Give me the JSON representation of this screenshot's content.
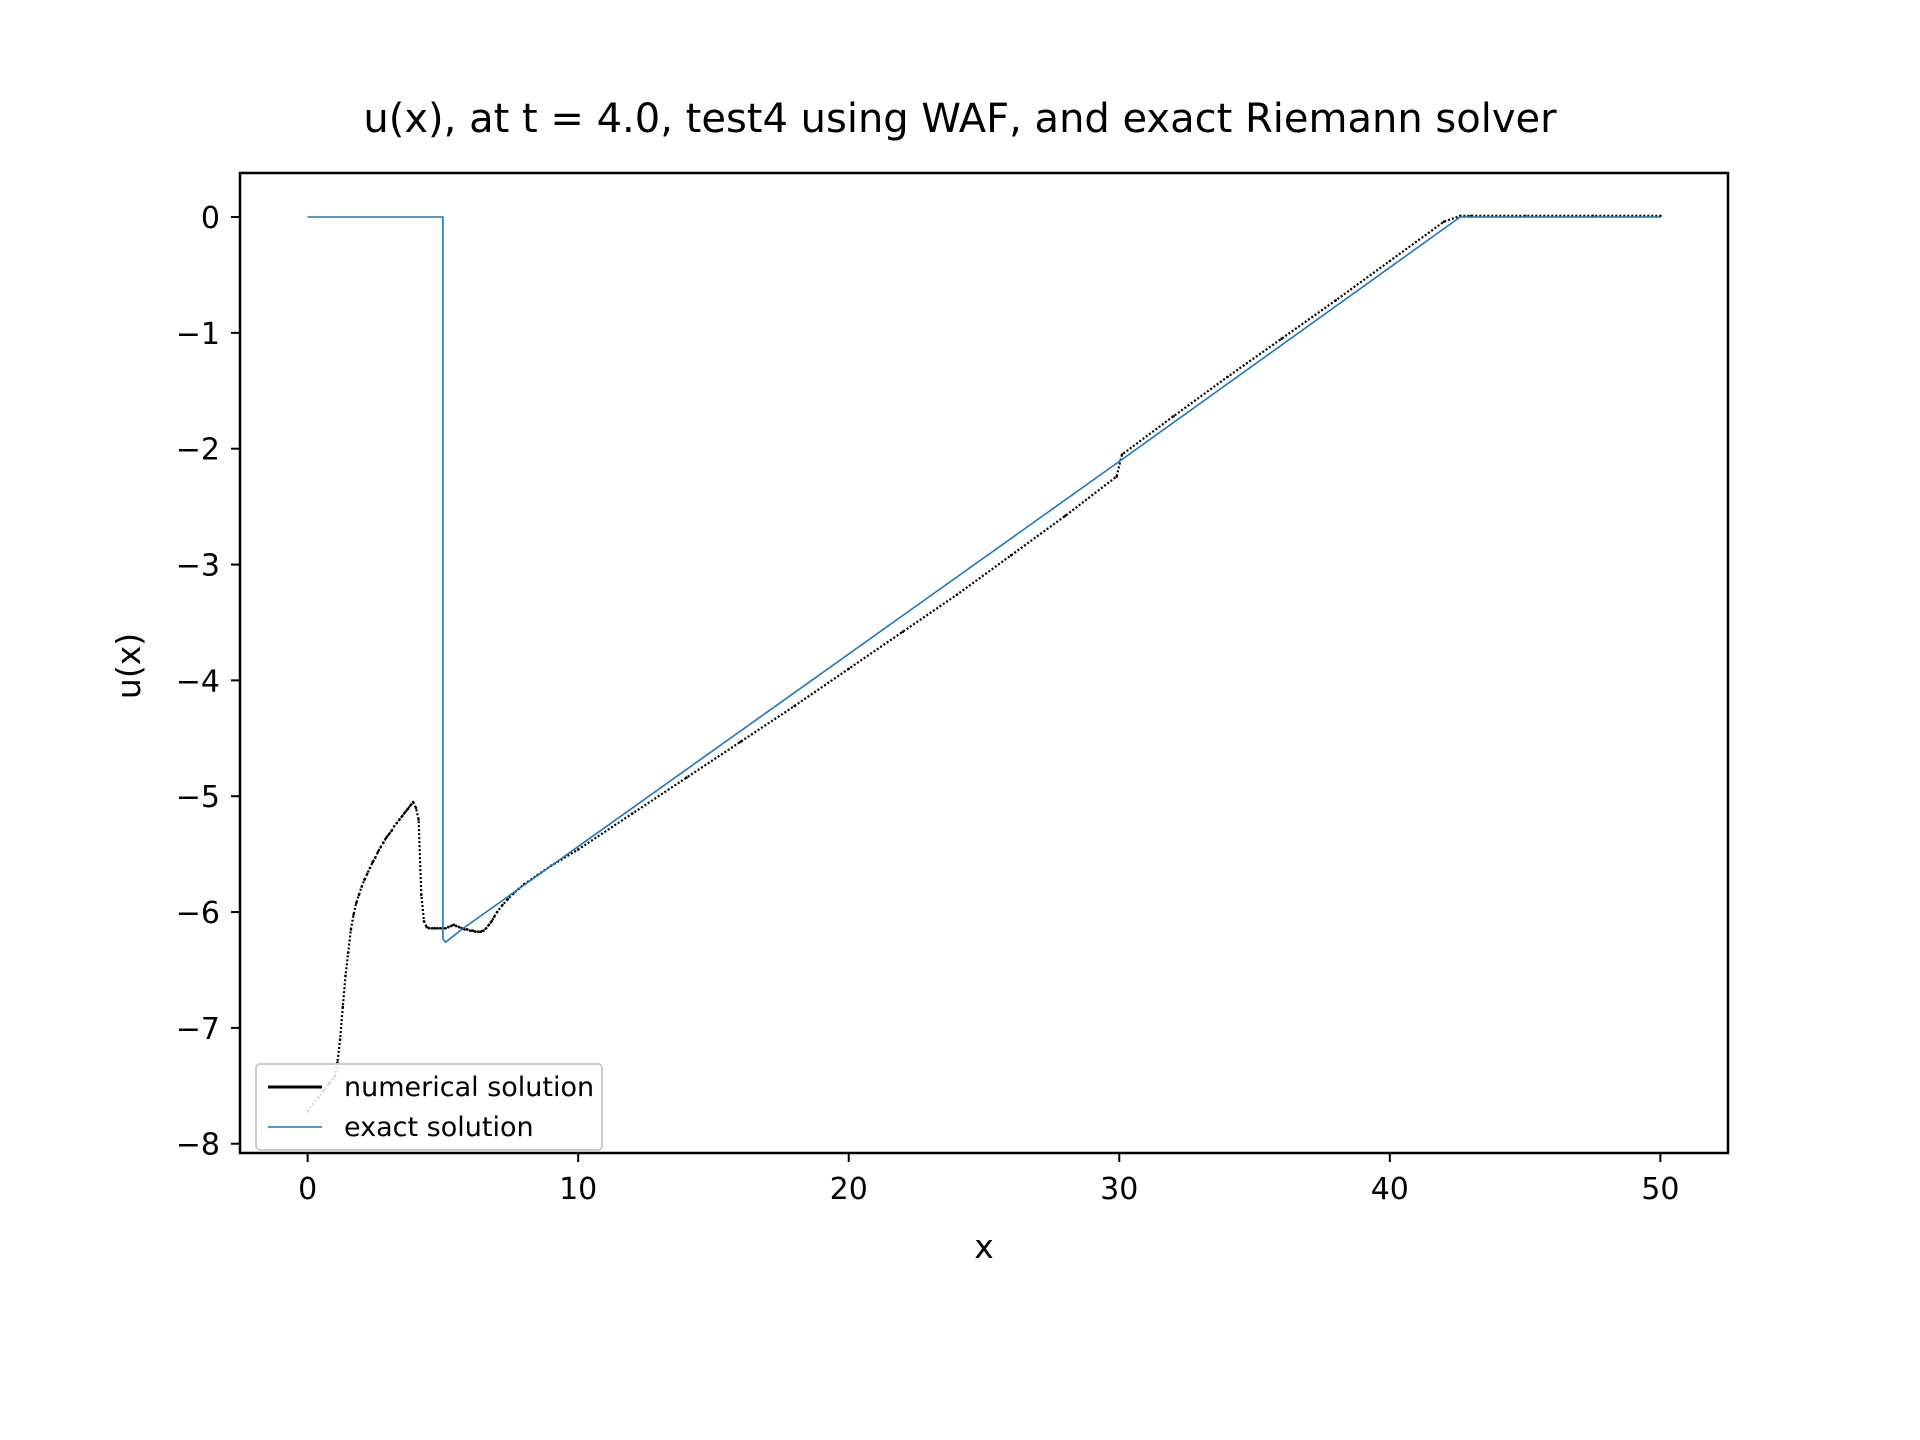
{
  "chart_data": {
    "type": "line",
    "title": "u(x), at t = 4.0, test4 using WAF, and exact Riemann solver",
    "xlabel": "x",
    "ylabel": "u(x)",
    "xlim": [
      -2.5,
      52.5
    ],
    "ylim": [
      -8.08,
      0.38
    ],
    "xticks": [
      0,
      10,
      20,
      30,
      40,
      50
    ],
    "yticks": [
      0,
      -1,
      -2,
      -3,
      -4,
      -5,
      -6,
      -7,
      -8
    ],
    "grid": false,
    "legend_position": "lower-left",
    "series": [
      {
        "name": "numerical solution",
        "color": "#000000",
        "style": "dots",
        "x": [
          0.0,
          0.2,
          0.4,
          0.6,
          0.8,
          1.0,
          1.1,
          1.2,
          1.3,
          1.4,
          1.5,
          1.6,
          1.7,
          1.8,
          1.9,
          2.0,
          2.1,
          2.2,
          2.3,
          2.4,
          2.5,
          2.6,
          2.7,
          2.8,
          2.9,
          3.0,
          3.1,
          3.2,
          3.3,
          3.4,
          3.5,
          3.6,
          3.7,
          3.8,
          3.9,
          4.0,
          4.1,
          4.2,
          4.3,
          4.4,
          4.5,
          4.6,
          4.7,
          4.8,
          4.9,
          5.0,
          5.1,
          5.2,
          5.3,
          5.4,
          5.5,
          5.6,
          5.7,
          5.8,
          5.9,
          6.0,
          6.1,
          6.2,
          6.3,
          6.4,
          6.5,
          6.6,
          6.7,
          6.8,
          6.9,
          7.0,
          7.2,
          7.4,
          7.6,
          7.8,
          8.0,
          8.5,
          9.0,
          10.0,
          12.0,
          14.0,
          16.0,
          18.0,
          20.0,
          22.0,
          24.0,
          26.0,
          28.0,
          29.9,
          30.1,
          32.0,
          34.0,
          36.0,
          38.0,
          40.0,
          42.0,
          42.6,
          43.0,
          45.0,
          47.5,
          50.0
        ],
        "y": [
          -7.72,
          -7.66,
          -7.6,
          -7.54,
          -7.48,
          -7.42,
          -7.3,
          -7.1,
          -6.82,
          -6.55,
          -6.35,
          -6.15,
          -6.02,
          -5.92,
          -5.85,
          -5.78,
          -5.72,
          -5.67,
          -5.62,
          -5.57,
          -5.53,
          -5.48,
          -5.44,
          -5.4,
          -5.36,
          -5.33,
          -5.3,
          -5.26,
          -5.23,
          -5.2,
          -5.17,
          -5.14,
          -5.11,
          -5.08,
          -5.05,
          -5.1,
          -5.2,
          -5.85,
          -6.08,
          -6.13,
          -6.14,
          -6.14,
          -6.14,
          -6.14,
          -6.14,
          -6.14,
          -6.14,
          -6.13,
          -6.12,
          -6.11,
          -6.12,
          -6.13,
          -6.14,
          -6.15,
          -6.15,
          -6.16,
          -6.16,
          -6.17,
          -6.17,
          -6.17,
          -6.16,
          -6.14,
          -6.11,
          -6.08,
          -6.04,
          -6.0,
          -5.94,
          -5.89,
          -5.84,
          -5.8,
          -5.76,
          -5.68,
          -5.6,
          -5.46,
          -5.15,
          -4.84,
          -4.53,
          -4.22,
          -3.9,
          -3.58,
          -3.26,
          -2.92,
          -2.58,
          -2.24,
          -2.05,
          -1.72,
          -1.38,
          -1.05,
          -0.72,
          -0.38,
          -0.04,
          0.01,
          0.01,
          0.01,
          0.01,
          0.01
        ]
      },
      {
        "name": "exact solution",
        "color": "#1f77b4",
        "style": "line",
        "x": [
          0.0,
          5.0,
          5.0,
          5.1,
          5.7,
          30.0,
          42.6,
          50.0
        ],
        "y": [
          0.0,
          0.0,
          -6.23,
          -6.26,
          -6.15,
          -2.11,
          0.0,
          0.0
        ]
      }
    ]
  }
}
